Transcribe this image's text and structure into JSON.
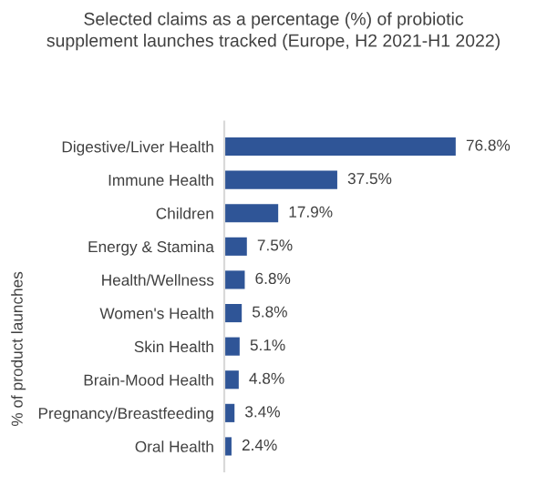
{
  "chart_data": {
    "type": "bar",
    "orientation": "horizontal",
    "title": "Selected claims as a percentage (%) of probiotic\nsupplement launches tracked (Europe, H2 2021-H1 2022)",
    "ylabel": "% of product launches",
    "categories": [
      "Digestive/Liver Health",
      "Immune Health",
      "Children",
      "Energy & Stamina",
      "Health/Wellness",
      "Women's Health",
      "Skin Health",
      "Brain-Mood Health",
      "Pregnancy/Breastfeeding",
      "Oral Health"
    ],
    "values": [
      76.8,
      37.5,
      17.9,
      7.5,
      6.8,
      5.8,
      5.1,
      4.8,
      3.4,
      2.4
    ],
    "value_labels": [
      "76.8%",
      "37.5%",
      "17.9%",
      "7.5%",
      "6.8%",
      "5.8%",
      "5.1%",
      "4.8%",
      "3.4%",
      "2.4%"
    ],
    "color": "#2f5597",
    "tick_labels": "y",
    "grid": false,
    "legend": false
  }
}
